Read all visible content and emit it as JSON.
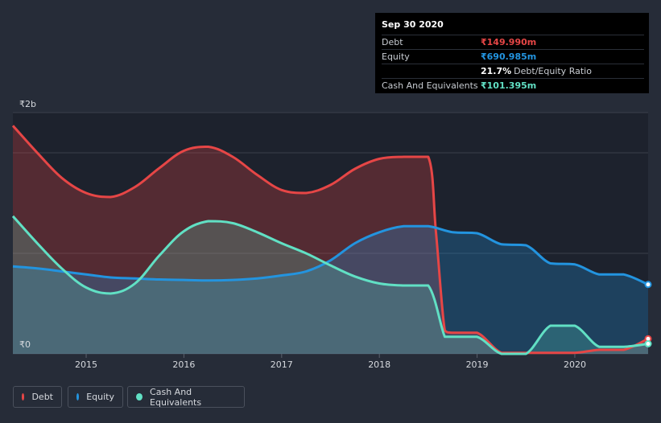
{
  "chart_data": {
    "type": "area",
    "title": "",
    "currency_symbol": "₹",
    "xlabel": "",
    "ylabel": "",
    "ylim": [
      0,
      2.4
    ],
    "x_ticks": [
      "2015",
      "2016",
      "2017",
      "2018",
      "2019",
      "2020"
    ],
    "y_tick_labels": {
      "top": "₹2b",
      "bottom": "₹0"
    },
    "x_range": [
      2014.25,
      2020.75
    ],
    "series": [
      {
        "name": "Debt",
        "color": "#e64646",
        "points": [
          [
            2014.25,
            2.27
          ],
          [
            2014.5,
            2.0
          ],
          [
            2014.75,
            1.75
          ],
          [
            2015.0,
            1.6
          ],
          [
            2015.25,
            1.56
          ],
          [
            2015.5,
            1.66
          ],
          [
            2015.75,
            1.85
          ],
          [
            2016.0,
            2.02
          ],
          [
            2016.25,
            2.06
          ],
          [
            2016.5,
            1.96
          ],
          [
            2016.75,
            1.78
          ],
          [
            2017.0,
            1.63
          ],
          [
            2017.25,
            1.6
          ],
          [
            2017.5,
            1.68
          ],
          [
            2017.75,
            1.84
          ],
          [
            2018.0,
            1.94
          ],
          [
            2018.25,
            1.96
          ],
          [
            2018.5,
            1.96
          ],
          [
            2018.58,
            1.2
          ],
          [
            2018.67,
            0.23
          ],
          [
            2018.75,
            0.21
          ],
          [
            2019.0,
            0.21
          ],
          [
            2019.25,
            0.01
          ],
          [
            2019.5,
            0.01
          ],
          [
            2019.75,
            0.01
          ],
          [
            2020.0,
            0.01
          ],
          [
            2020.25,
            0.04
          ],
          [
            2020.5,
            0.04
          ],
          [
            2020.75,
            0.15
          ]
        ]
      },
      {
        "name": "Equity",
        "color": "#2394df",
        "points": [
          [
            2014.25,
            0.87
          ],
          [
            2014.5,
            0.85
          ],
          [
            2014.75,
            0.82
          ],
          [
            2015.0,
            0.79
          ],
          [
            2015.25,
            0.76
          ],
          [
            2015.5,
            0.75
          ],
          [
            2015.75,
            0.74
          ],
          [
            2016.0,
            0.735
          ],
          [
            2016.25,
            0.73
          ],
          [
            2016.5,
            0.735
          ],
          [
            2016.75,
            0.75
          ],
          [
            2017.0,
            0.78
          ],
          [
            2017.25,
            0.82
          ],
          [
            2017.5,
            0.93
          ],
          [
            2017.75,
            1.1
          ],
          [
            2018.0,
            1.21
          ],
          [
            2018.25,
            1.27
          ],
          [
            2018.5,
            1.27
          ],
          [
            2018.75,
            1.21
          ],
          [
            2019.0,
            1.2
          ],
          [
            2019.25,
            1.09
          ],
          [
            2019.5,
            1.08
          ],
          [
            2019.75,
            0.9
          ],
          [
            2020.0,
            0.89
          ],
          [
            2020.25,
            0.79
          ],
          [
            2020.5,
            0.79
          ],
          [
            2020.75,
            0.69
          ]
        ]
      },
      {
        "name": "Cash And Equivalents",
        "color": "#61e0c4",
        "points": [
          [
            2014.25,
            1.37
          ],
          [
            2014.5,
            1.1
          ],
          [
            2014.75,
            0.85
          ],
          [
            2015.0,
            0.66
          ],
          [
            2015.25,
            0.6
          ],
          [
            2015.5,
            0.7
          ],
          [
            2015.75,
            0.98
          ],
          [
            2016.0,
            1.22
          ],
          [
            2016.25,
            1.32
          ],
          [
            2016.5,
            1.3
          ],
          [
            2016.75,
            1.21
          ],
          [
            2017.0,
            1.1
          ],
          [
            2017.25,
            1.0
          ],
          [
            2017.5,
            0.88
          ],
          [
            2017.75,
            0.77
          ],
          [
            2018.0,
            0.7
          ],
          [
            2018.25,
            0.68
          ],
          [
            2018.5,
            0.68
          ],
          [
            2018.67,
            0.17
          ],
          [
            2018.75,
            0.17
          ],
          [
            2019.0,
            0.17
          ],
          [
            2019.25,
            0.0
          ],
          [
            2019.5,
            0.0
          ],
          [
            2019.75,
            0.28
          ],
          [
            2020.0,
            0.28
          ],
          [
            2020.25,
            0.07
          ],
          [
            2020.5,
            0.07
          ],
          [
            2020.75,
            0.1
          ]
        ]
      }
    ],
    "legend": [
      "Debt",
      "Equity",
      "Cash And Equivalents"
    ]
  },
  "tooltip": {
    "date": "Sep 30 2020",
    "rows": [
      {
        "label": "Debt",
        "value": "₹149.990m",
        "color": "#e64646"
      },
      {
        "label": "Equity",
        "value": "₹690.985m",
        "color": "#2394df"
      },
      {
        "label": "",
        "value": "21.7%",
        "extra": "Debt/Equity Ratio",
        "color": "#ffffff"
      },
      {
        "label": "Cash And Equivalents",
        "value": "₹101.395m",
        "color": "#61e0c4"
      }
    ]
  },
  "legend_items": [
    {
      "label": "Debt",
      "color": "#e64646"
    },
    {
      "label": "Equity",
      "color": "#2394df"
    },
    {
      "label": "Cash And Equivalents",
      "color": "#61e0c4"
    }
  ]
}
